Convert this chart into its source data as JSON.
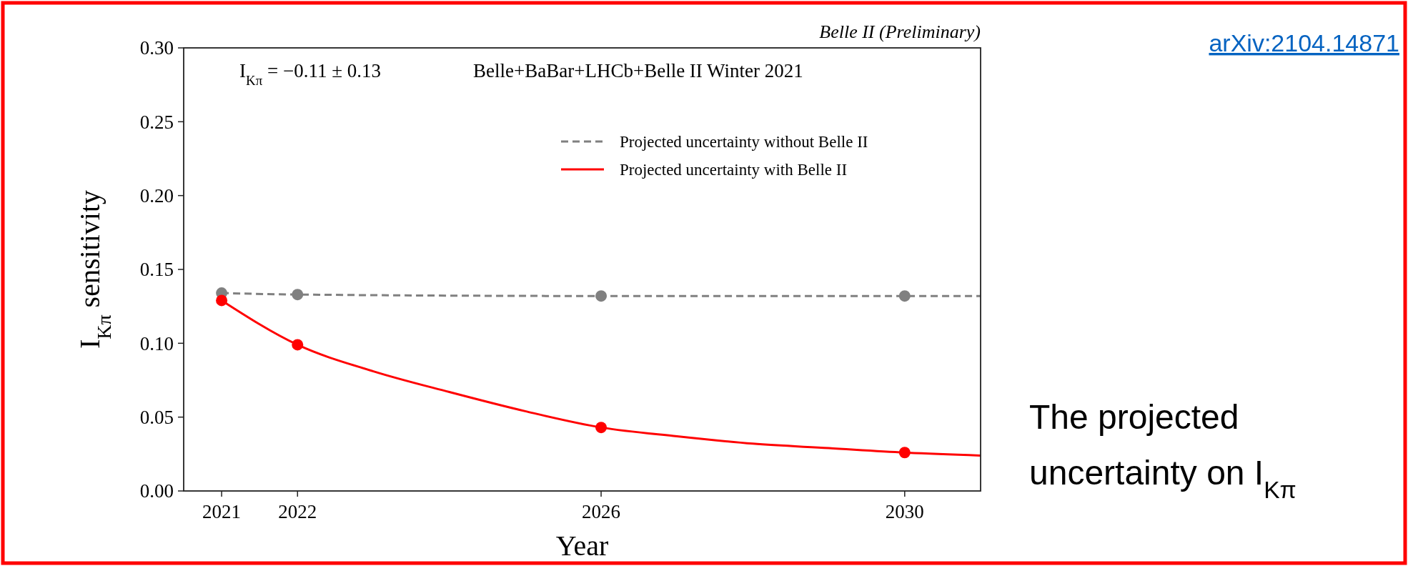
{
  "chart_data": {
    "type": "line",
    "title": "Belle II (Preliminary)",
    "xlabel": "Year",
    "ylabel": "I$_{Kπ}$ sensitivity",
    "annotations": [
      "I$_{Kπ}$ = −0.11 ± 0.13",
      "Belle+BaBar+LHCb+Belle II Winter 2021",
      "arXiv:2104.14871",
      "The projected uncertainty on I$_{Kπ}$"
    ],
    "xlim": [
      2020.5,
      2031
    ],
    "xticks": [
      2021,
      2022,
      2026,
      2030
    ],
    "ylim": [
      0,
      0.3
    ],
    "yticks": [
      {
        "value": 0,
        "label": "0.00"
      },
      {
        "value": 0.05,
        "label": "0.05"
      },
      {
        "value": 0.1,
        "label": "0.10"
      },
      {
        "value": 0.15,
        "label": "0.15"
      },
      {
        "value": 0.2,
        "label": "0.20"
      },
      {
        "value": 0.25,
        "label": "0.25"
      },
      {
        "value": 0.3,
        "label": "0.30"
      }
    ],
    "grid": false,
    "legend": "top right",
    "series": [
      {
        "name": "Projected uncertainty without Belle II",
        "color": "#808080",
        "line_style": "dashed",
        "marker": "none",
        "x": [
          2021,
          2022,
          2026,
          2030,
          2031
        ],
        "values": [
          0.134,
          0.133,
          0.132,
          0.132,
          0.132
        ]
      },
      {
        "type": "scatter",
        "color": "#808080",
        "marker": "circle",
        "x": [
          2021,
          2022,
          2026,
          2030
        ],
        "values": [
          0.134,
          0.133,
          0.132,
          0.132
        ]
      },
      {
        "name": "Projected uncertainty with Belle II",
        "color": "#ff0000",
        "line_style": "solid",
        "marker": "none",
        "x": [
          2021,
          2022,
          2023,
          2024,
          2025,
          2026,
          2027,
          2028,
          2029,
          2030,
          2031
        ],
        "values": [
          0.129,
          0.099,
          0.081,
          0.067,
          0.054,
          0.043,
          0.037,
          0.032,
          0.029,
          0.026,
          0.024
        ]
      },
      {
        "type": "scatter",
        "color": "#ff0000",
        "marker": "circle",
        "x": [
          2021,
          2022,
          2026,
          2030
        ],
        "values": [
          0.129,
          0.099,
          0.043,
          0.026
        ]
      }
    ]
  }
}
